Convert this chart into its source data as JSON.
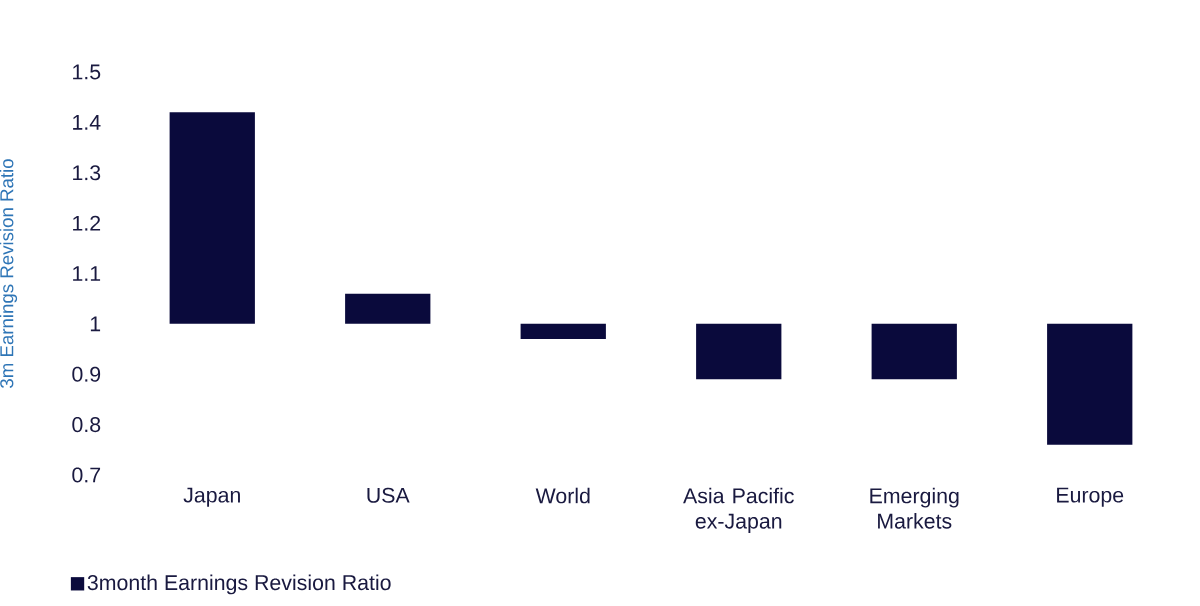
{
  "chart_data": {
    "type": "bar",
    "ylabel": "3m Earnings Revision Ratio",
    "categories": [
      "Japan",
      "USA",
      "World",
      "Asia Pacific ex-Japan",
      "Emerging Markets",
      "Europe"
    ],
    "series": [
      {
        "name": "3month Earnings Revision Ratio",
        "color": "#0a0a3c",
        "base": [
          1,
          1,
          1,
          1,
          1,
          1
        ],
        "values": [
          0.42,
          0.06,
          -0.03,
          -0.11,
          -0.11,
          -0.24
        ]
      }
    ],
    "ylim": [
      0.7,
      1.5
    ],
    "yticks": [
      0.7,
      0.8,
      0.9,
      1,
      1.1,
      1.2,
      1.3,
      1.4,
      1.5
    ],
    "legend": "bottom left"
  }
}
